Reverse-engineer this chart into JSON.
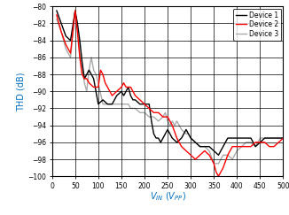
{
  "xlabel": "V_{IN} (V_{PP})",
  "ylabel": "THD (dB)",
  "xlim": [
    0,
    500
  ],
  "ylim": [
    -100,
    -80
  ],
  "xticks": [
    0,
    50,
    100,
    150,
    200,
    250,
    300,
    350,
    400,
    450,
    500
  ],
  "yticks": [
    -100,
    -98,
    -96,
    -94,
    -92,
    -90,
    -88,
    -86,
    -84,
    -82,
    -80
  ],
  "device1_color": "#000000",
  "device2_color": "#ff0000",
  "device3_color": "#aaaaaa",
  "device1_x": [
    10,
    20,
    30,
    40,
    50,
    55,
    60,
    65,
    70,
    75,
    80,
    90,
    100,
    110,
    120,
    130,
    140,
    150,
    155,
    160,
    165,
    170,
    175,
    180,
    190,
    200,
    210,
    215,
    220,
    225,
    230,
    235,
    240,
    250,
    260,
    270,
    280,
    290,
    295,
    300,
    310,
    320,
    330,
    340,
    350,
    360,
    370,
    380,
    390,
    400,
    410,
    420,
    430,
    440,
    450,
    460,
    470,
    480,
    490,
    500
  ],
  "device1_y": [
    -80.5,
    -82.0,
    -83.5,
    -84.0,
    -80.5,
    -82.0,
    -84.0,
    -86.5,
    -88.5,
    -88.0,
    -87.5,
    -88.5,
    -91.5,
    -91.0,
    -91.5,
    -91.5,
    -90.5,
    -90.0,
    -90.5,
    -90.0,
    -89.5,
    -90.5,
    -91.0,
    -91.0,
    -91.5,
    -91.5,
    -91.5,
    -93.5,
    -95.0,
    -95.5,
    -95.5,
    -96.0,
    -95.5,
    -94.5,
    -95.5,
    -96.0,
    -95.5,
    -94.5,
    -95.0,
    -95.5,
    -96.0,
    -96.5,
    -96.5,
    -96.5,
    -97.0,
    -97.5,
    -96.5,
    -95.5,
    -95.5,
    -95.5,
    -95.5,
    -95.5,
    -95.5,
    -96.5,
    -96.0,
    -95.5,
    -95.5,
    -95.5,
    -95.5,
    -95.5
  ],
  "device2_x": [
    10,
    20,
    30,
    40,
    50,
    55,
    60,
    65,
    70,
    75,
    80,
    90,
    100,
    105,
    110,
    115,
    120,
    130,
    140,
    150,
    155,
    160,
    165,
    170,
    175,
    180,
    190,
    200,
    210,
    220,
    230,
    240,
    250,
    255,
    260,
    270,
    280,
    290,
    300,
    310,
    320,
    330,
    340,
    350,
    355,
    360,
    370,
    380,
    390,
    400,
    410,
    420,
    430,
    440,
    450,
    460,
    470,
    480,
    490,
    500
  ],
  "device2_y": [
    -81.0,
    -83.0,
    -84.5,
    -85.5,
    -80.5,
    -83.0,
    -86.0,
    -88.0,
    -88.5,
    -88.5,
    -89.0,
    -89.5,
    -89.5,
    -87.5,
    -88.0,
    -89.0,
    -89.5,
    -90.5,
    -90.0,
    -89.5,
    -89.0,
    -89.5,
    -89.5,
    -89.5,
    -90.0,
    -90.5,
    -91.0,
    -91.5,
    -92.0,
    -92.5,
    -92.5,
    -93.0,
    -93.0,
    -93.5,
    -94.0,
    -95.5,
    -96.5,
    -97.0,
    -97.5,
    -98.0,
    -97.5,
    -97.0,
    -97.5,
    -98.5,
    -99.5,
    -100.0,
    -99.0,
    -97.5,
    -96.5,
    -96.5,
    -96.5,
    -96.5,
    -96.5,
    -96.0,
    -96.0,
    -96.0,
    -96.5,
    -96.5,
    -96.0,
    -95.5
  ],
  "device3_x": [
    10,
    20,
    30,
    40,
    50,
    55,
    60,
    65,
    70,
    75,
    80,
    85,
    90,
    95,
    100,
    110,
    120,
    130,
    140,
    150,
    160,
    165,
    170,
    175,
    180,
    190,
    200,
    210,
    220,
    230,
    240,
    245,
    250,
    255,
    260,
    265,
    270,
    280,
    290,
    295,
    300,
    310,
    320,
    330,
    340,
    350,
    360,
    370,
    380,
    390,
    400,
    410,
    420,
    430,
    440,
    450,
    460,
    470,
    480,
    490,
    500
  ],
  "device3_y": [
    -81.5,
    -83.0,
    -85.0,
    -86.0,
    -80.5,
    -82.5,
    -85.5,
    -87.0,
    -89.0,
    -90.0,
    -87.5,
    -86.0,
    -87.5,
    -88.0,
    -89.0,
    -91.5,
    -91.5,
    -91.5,
    -91.5,
    -91.5,
    -91.5,
    -91.5,
    -92.0,
    -92.0,
    -92.0,
    -92.5,
    -92.5,
    -93.0,
    -93.0,
    -93.5,
    -93.0,
    -92.5,
    -93.5,
    -94.0,
    -93.5,
    -94.0,
    -93.5,
    -94.5,
    -95.0,
    -95.0,
    -95.5,
    -96.0,
    -96.5,
    -96.5,
    -97.0,
    -98.5,
    -98.5,
    -97.5,
    -97.5,
    -98.0,
    -97.0,
    -96.5,
    -96.0,
    -96.0,
    -96.5,
    -95.5,
    -95.5,
    -95.5,
    -95.5,
    -95.5,
    -95.5
  ],
  "legend_labels": [
    "Device 1",
    "Device 2",
    "Device 3"
  ],
  "bg_color": "#ffffff",
  "grid_color": "#000000",
  "label_color": "#0070c0",
  "linewidth": 1.0
}
